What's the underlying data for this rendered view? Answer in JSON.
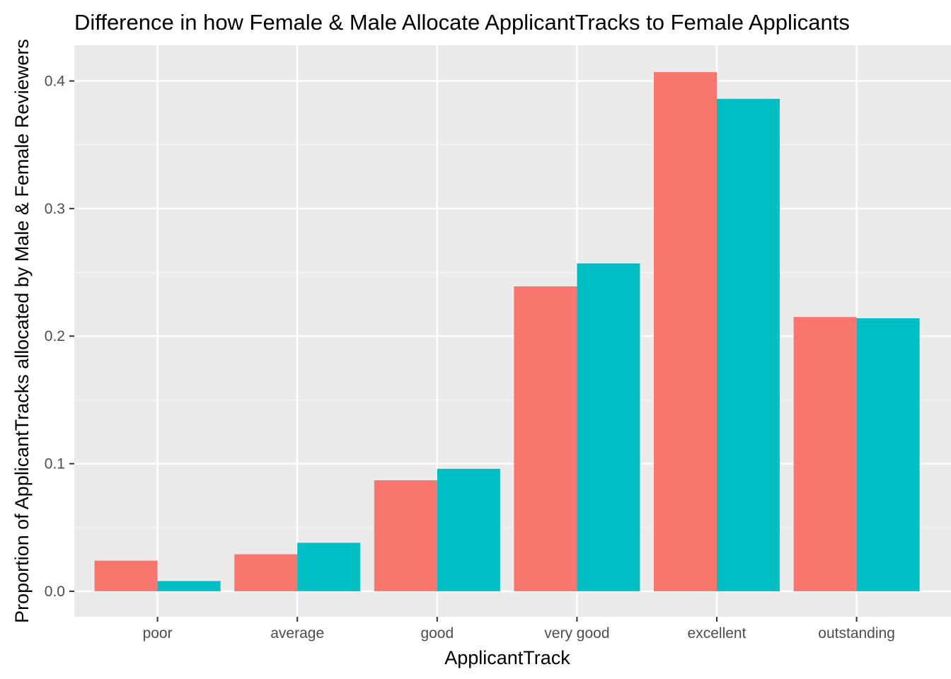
{
  "chart_data": {
    "type": "bar",
    "title": "Difference in how Female & Male Allocate ApplicantTracks to Female Applicants",
    "xlabel": "ApplicantTrack",
    "ylabel": "Proportion of ApplicantTracks allocated by Male & Female Reviewers",
    "categories": [
      "poor",
      "average",
      "good",
      "very good",
      "excellent",
      "outstanding"
    ],
    "series": [
      {
        "color": "#F8766D",
        "values": [
          0.024,
          0.029,
          0.087,
          0.239,
          0.407,
          0.215
        ]
      },
      {
        "color": "#00BFC4",
        "values": [
          0.008,
          0.038,
          0.096,
          0.257,
          0.386,
          0.214
        ]
      }
    ],
    "yticks": [
      "0.0",
      "0.1",
      "0.2",
      "0.3",
      "0.4"
    ],
    "ylim": [
      -0.02,
      0.428
    ],
    "grid": true,
    "legend": "none"
  }
}
